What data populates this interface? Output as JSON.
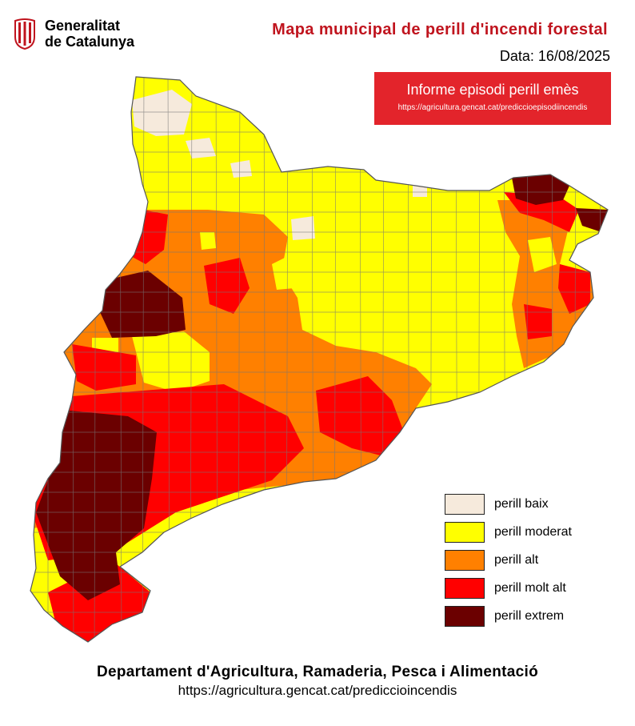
{
  "header": {
    "logo_line1": "Generalitat",
    "logo_line2": "de Catalunya",
    "title": "Mapa municipal de perill d'incendi forestal",
    "date": "Data: 16/08/2025"
  },
  "episode_notice": {
    "title": "Informe episodi perill emès",
    "url": "https://agricultura.gencat.cat/prediccioepisodiincendis"
  },
  "legend": [
    {
      "label": "perill baix",
      "color": "#f6eadc"
    },
    {
      "label": "perill moderat",
      "color": "#ffff00"
    },
    {
      "label": "perill alt",
      "color": "#ff8000"
    },
    {
      "label": "perill molt alt",
      "color": "#ff0000"
    },
    {
      "label": "perill extrem",
      "color": "#6b0000"
    }
  ],
  "footer": {
    "department": "Departament d'Agricultura, Ramaderia, Pesca i Alimentació",
    "url": "https://agricultura.gencat.cat/prediccioincendis"
  },
  "colors": {
    "title_red": "#c0141e",
    "notice_bg": "#e3242b",
    "border": "#555555"
  }
}
